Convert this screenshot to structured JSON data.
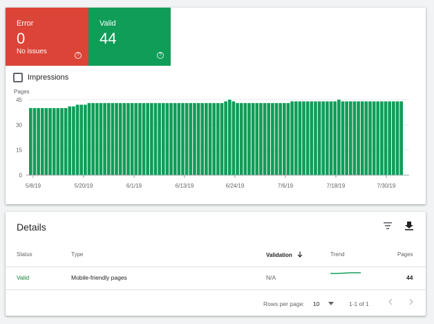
{
  "tiles": {
    "error": {
      "label": "Error",
      "value": "0",
      "sub": "No issues",
      "help_icon": "help-circle-icon",
      "color": "#db4437"
    },
    "valid": {
      "label": "Valid",
      "value": "44",
      "help_icon": "help-circle-icon",
      "color": "#0f9d58"
    }
  },
  "impressions": {
    "label": "Impressions",
    "checked": false
  },
  "chart_data": {
    "type": "bar",
    "ylabel": "Pages",
    "ylim": [
      0,
      45
    ],
    "yticks": [
      "0",
      "15",
      "30",
      "45"
    ],
    "xticks": [
      "5/8/19",
      "5/20/19",
      "6/1/19",
      "6/13/19",
      "6/24/19",
      "7/6/19",
      "7/18/19",
      "7/30/19"
    ],
    "color": "#0f9d58",
    "values": [
      40,
      40,
      40,
      40,
      40,
      40,
      40,
      40,
      40,
      40,
      41,
      41,
      42,
      42,
      42,
      43,
      43,
      43,
      43,
      43,
      43,
      43,
      43,
      43,
      43,
      43,
      43,
      43,
      43,
      43,
      43,
      43,
      43,
      43,
      43,
      43,
      43,
      43,
      43,
      43,
      43,
      43,
      43,
      43,
      43,
      43,
      43,
      43,
      43,
      43,
      44,
      45,
      44,
      43,
      43,
      43,
      43,
      43,
      43,
      43,
      43,
      43,
      43,
      43,
      43,
      43,
      43,
      44,
      44,
      44,
      44,
      44,
      44,
      44,
      44,
      44,
      44,
      44,
      44,
      45,
      44,
      44,
      44,
      44,
      44,
      44,
      44,
      44,
      44,
      44,
      44,
      44,
      44,
      44,
      44,
      44
    ]
  },
  "details": {
    "title": "Details",
    "filter_icon": "filter-icon",
    "download_icon": "download-icon",
    "columns": {
      "status": "Status",
      "type": "Type",
      "validation": "Validation",
      "trend": "Trend",
      "pages": "Pages"
    },
    "sort_icon": "arrow-down-icon",
    "rows": [
      {
        "status": "Valid",
        "type": "Mobile-friendly pages",
        "validation": "N/A",
        "pages": "44"
      }
    ],
    "pagination": {
      "rows_per_page_label": "Rows per page:",
      "rows_per_page": "10",
      "range": "1-1 of 1"
    }
  }
}
